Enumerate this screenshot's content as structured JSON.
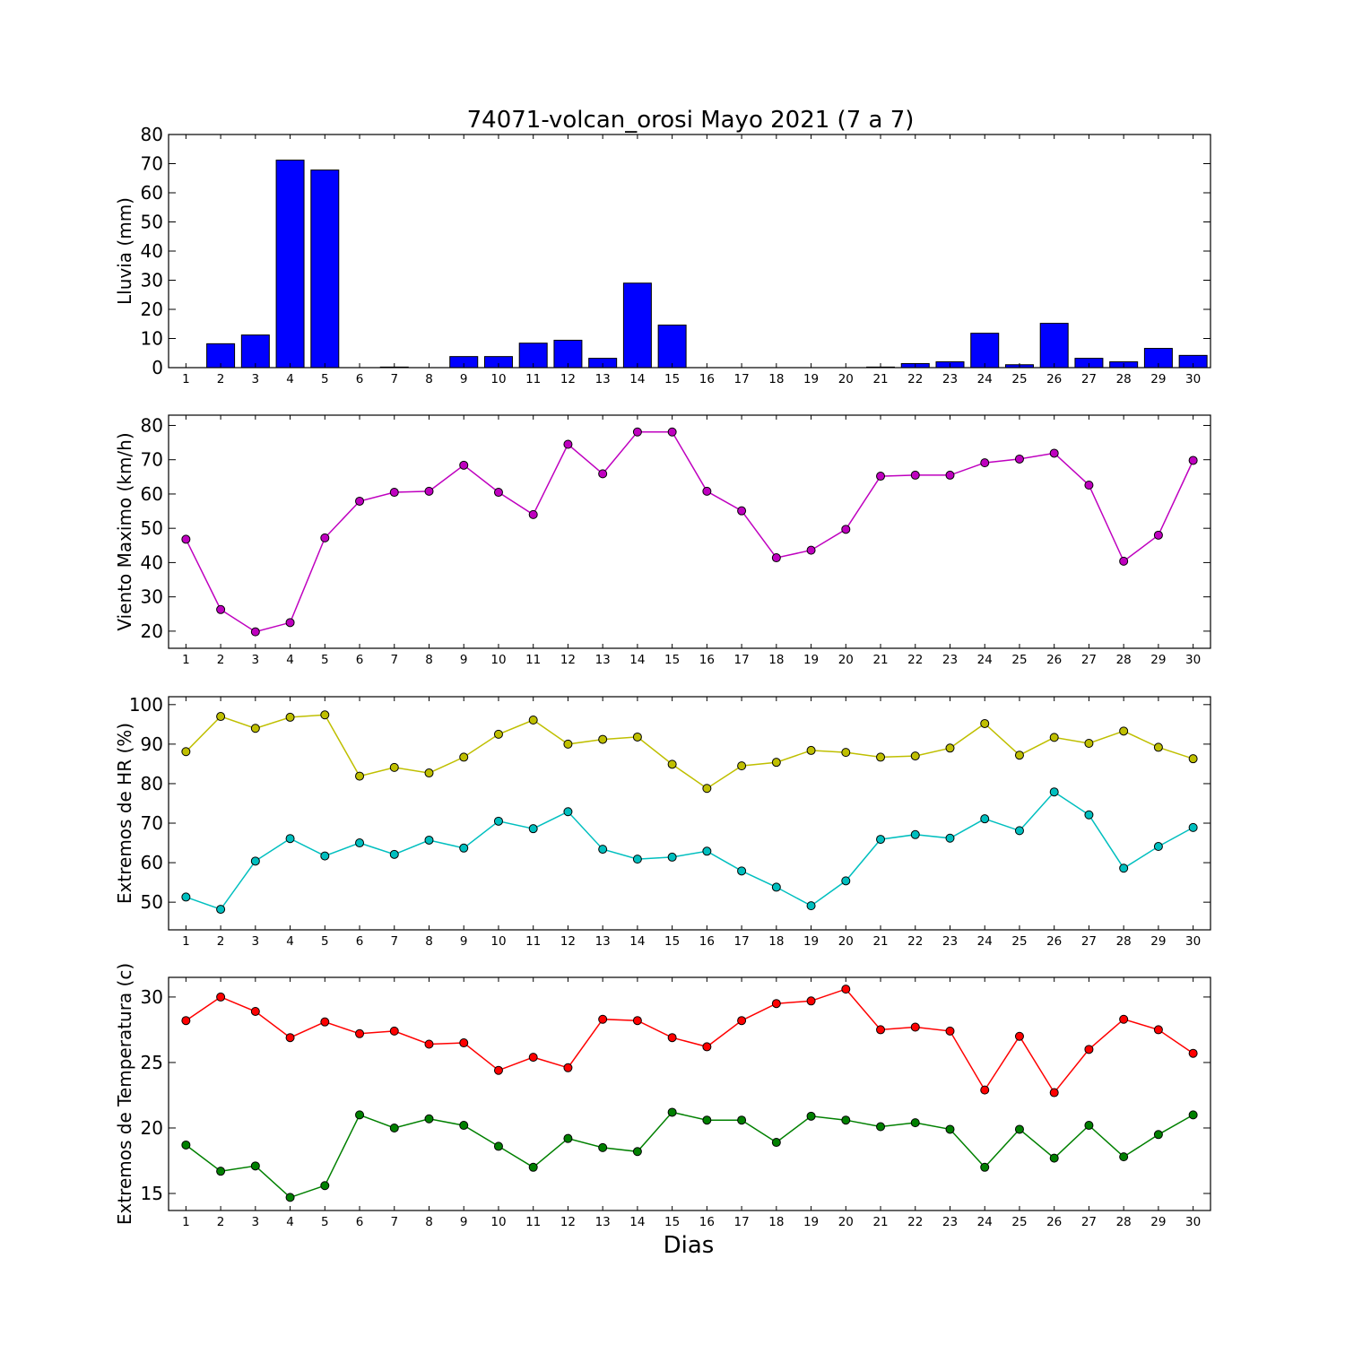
{
  "title": "74071-volcan_orosi Mayo 2021  (7 a 7)",
  "xlabel": "Dias",
  "chart_data": [
    {
      "type": "bar",
      "ylabel": "Lluvia (mm)",
      "ylim": [
        0,
        80
      ],
      "yticks": [
        0,
        10,
        20,
        30,
        40,
        50,
        60,
        70,
        80
      ],
      "x": [
        1,
        2,
        3,
        4,
        5,
        6,
        7,
        8,
        9,
        10,
        11,
        12,
        13,
        14,
        15,
        16,
        17,
        18,
        19,
        20,
        21,
        22,
        23,
        24,
        25,
        26,
        27,
        28,
        29,
        30
      ],
      "series": [
        {
          "color": "#0000ff",
          "values": [
            0,
            8.2,
            11.2,
            71.2,
            67.8,
            0,
            0.2,
            0,
            3.8,
            3.8,
            8.4,
            9.4,
            3.2,
            29.0,
            14.6,
            0,
            0,
            0,
            0,
            0,
            0.2,
            1.4,
            2.0,
            11.8,
            1.0,
            15.2,
            3.2,
            2.0,
            6.6,
            4.2
          ]
        }
      ]
    },
    {
      "type": "line",
      "ylabel": "Viento Maximo (km/h)",
      "ylim": [
        15,
        83
      ],
      "yticks": [
        20,
        30,
        40,
        50,
        60,
        70,
        80
      ],
      "x": [
        1,
        2,
        3,
        4,
        5,
        6,
        7,
        8,
        9,
        10,
        11,
        12,
        13,
        14,
        15,
        16,
        17,
        18,
        19,
        20,
        21,
        22,
        23,
        24,
        25,
        26,
        27,
        28,
        29,
        30
      ],
      "series": [
        {
          "color": "#bf00bf",
          "values": [
            46.8,
            26.3,
            19.8,
            22.5,
            47.2,
            57.9,
            60.5,
            60.8,
            68.4,
            60.5,
            54.0,
            74.5,
            65.9,
            78.1,
            78.1,
            60.8,
            55.1,
            41.4,
            43.6,
            49.7,
            65.2,
            65.5,
            65.5,
            69.1,
            70.2,
            71.9,
            62.6,
            40.4,
            48.0,
            69.8
          ]
        }
      ]
    },
    {
      "type": "line",
      "ylabel": "Extremos de HR (%)",
      "ylim": [
        43,
        102
      ],
      "yticks": [
        50,
        60,
        70,
        80,
        90,
        100
      ],
      "x": [
        1,
        2,
        3,
        4,
        5,
        6,
        7,
        8,
        9,
        10,
        11,
        12,
        13,
        14,
        15,
        16,
        17,
        18,
        19,
        20,
        21,
        22,
        23,
        24,
        25,
        26,
        27,
        28,
        29,
        30
      ],
      "series": [
        {
          "color": "#bfbf00",
          "values": [
            88.1,
            97.0,
            94.0,
            96.8,
            97.4,
            81.9,
            84.1,
            82.7,
            86.7,
            92.5,
            96.1,
            90.0,
            91.2,
            91.8,
            84.9,
            78.8,
            84.5,
            85.4,
            88.4,
            87.9,
            86.7,
            87.0,
            89.0,
            95.2,
            87.2,
            91.7,
            90.2,
            93.3,
            89.2,
            86.3
          ]
        },
        {
          "color": "#00bfbf",
          "values": [
            51.3,
            48.2,
            60.4,
            66.1,
            61.7,
            65.0,
            62.1,
            65.7,
            63.7,
            70.5,
            68.6,
            72.9,
            63.4,
            60.9,
            61.4,
            62.9,
            57.9,
            53.8,
            49.1,
            55.4,
            65.9,
            67.1,
            66.2,
            71.1,
            68.1,
            77.9,
            72.1,
            58.6,
            64.1,
            68.9
          ]
        }
      ]
    },
    {
      "type": "line",
      "ylabel": "Extremos de Temperatura (c)",
      "ylim": [
        13.7,
        31.5
      ],
      "yticks": [
        15,
        20,
        25,
        30
      ],
      "x": [
        1,
        2,
        3,
        4,
        5,
        6,
        7,
        8,
        9,
        10,
        11,
        12,
        13,
        14,
        15,
        16,
        17,
        18,
        19,
        20,
        21,
        22,
        23,
        24,
        25,
        26,
        27,
        28,
        29,
        30
      ],
      "series": [
        {
          "color": "#ff0000",
          "values": [
            28.2,
            30.0,
            28.9,
            26.9,
            28.1,
            27.2,
            27.4,
            26.4,
            26.5,
            24.4,
            25.4,
            24.6,
            28.3,
            28.2,
            26.9,
            26.2,
            28.2,
            29.5,
            29.7,
            30.6,
            27.5,
            27.7,
            27.4,
            22.9,
            27.0,
            22.7,
            26.0,
            28.3,
            27.5,
            25.7
          ]
        },
        {
          "color": "#008000",
          "values": [
            18.7,
            16.7,
            17.1,
            14.7,
            15.6,
            21.0,
            20.0,
            20.7,
            20.2,
            18.6,
            17.0,
            19.2,
            18.5,
            18.2,
            21.2,
            20.6,
            20.6,
            18.9,
            20.9,
            20.6,
            20.1,
            20.4,
            19.9,
            17.0,
            19.9,
            17.7,
            20.2,
            17.8,
            19.5,
            21.0
          ]
        }
      ]
    }
  ]
}
